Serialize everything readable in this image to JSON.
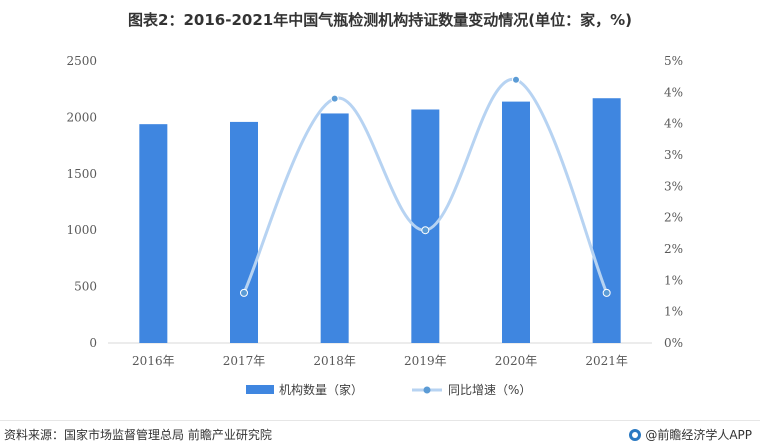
{
  "title": "图表2：2016-2021年中国气瓶检测机构持证数量变动情况(单位：家，%)",
  "source": "资料来源：国家市场监督管理总局 前瞻产业研究院",
  "brand": "@前瞻经济学人APP",
  "colors": {
    "bar": "#3f86e0",
    "line": "#b7d3f2",
    "marker": "#5b9bd5"
  },
  "chart_data": {
    "type": "bar",
    "categories": [
      "2016年",
      "2017年",
      "2018年",
      "2019年",
      "2020年",
      "2021年"
    ],
    "series": [
      {
        "name": "机构数量（家）",
        "type": "bar",
        "axis": "left",
        "values": [
          1940,
          1960,
          2035,
          2070,
          2140,
          2170
        ]
      },
      {
        "name": "同比增速（%）",
        "type": "line",
        "axis": "right",
        "values": [
          null,
          0.8,
          3.9,
          1.8,
          4.2,
          0.8
        ]
      }
    ],
    "y_left": {
      "lim": [
        0,
        2500
      ],
      "ticks": [
        "0",
        "500",
        "1000",
        "1500",
        "2000",
        "2500"
      ]
    },
    "y_right": {
      "lim": [
        0,
        4.5
      ],
      "ticks": [
        "0%",
        "1%",
        "1%",
        "2%",
        "2%",
        "3%",
        "3%",
        "4%",
        "4%",
        "5%"
      ]
    },
    "legend": "bottom-center",
    "grid": false
  }
}
